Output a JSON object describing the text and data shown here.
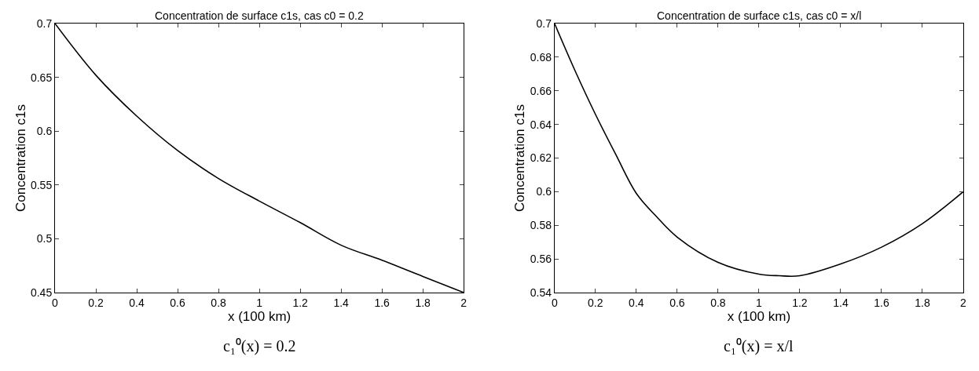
{
  "chart_data": [
    {
      "type": "line",
      "title": "Concentration de surface c1s, cas c0 = 0.2",
      "xlabel": "x (100 km)",
      "ylabel": "Concentration c1s",
      "x": [
        0,
        0.2,
        0.4,
        0.6,
        0.8,
        1.0,
        1.2,
        1.4,
        1.6,
        1.8,
        2.0
      ],
      "series": [
        {
          "color": "#000000",
          "values": [
            0.7,
            0.652,
            0.614,
            0.582,
            0.556,
            0.535,
            0.515,
            0.494,
            0.48,
            0.465,
            0.45
          ]
        }
      ],
      "xlim": [
        0,
        2
      ],
      "ylim": [
        0.45,
        0.7
      ],
      "xticks": [
        0,
        0.2,
        0.4,
        0.6,
        0.8,
        1,
        1.2,
        1.4,
        1.6,
        1.8,
        2
      ],
      "yticks": [
        0.45,
        0.5,
        0.55,
        0.6,
        0.65,
        0.7
      ],
      "annotations": [
        "c₁⁰(x) = 0.2"
      ]
    },
    {
      "type": "line",
      "title": "Concentration de surface c1s, cas c0 = x/l",
      "xlabel": "x (100 km)",
      "ylabel": "Concentration c1s",
      "x": [
        0,
        0.1,
        0.2,
        0.3,
        0.4,
        0.5,
        0.6,
        0.8,
        1.0,
        1.1,
        1.2,
        1.4,
        1.6,
        1.8,
        2.0
      ],
      "series": [
        {
          "color": "#000000",
          "values": [
            0.7,
            0.672,
            0.646,
            0.622,
            0.599,
            0.585,
            0.573,
            0.558,
            0.551,
            0.55,
            0.55,
            0.557,
            0.567,
            0.581,
            0.6
          ]
        }
      ],
      "xlim": [
        0,
        2
      ],
      "ylim": [
        0.54,
        0.7
      ],
      "xticks": [
        0,
        0.2,
        0.4,
        0.6,
        0.8,
        1,
        1.2,
        1.4,
        1.6,
        1.8,
        2
      ],
      "yticks": [
        0.54,
        0.56,
        0.58,
        0.6,
        0.62,
        0.64,
        0.66,
        0.68,
        0.7
      ],
      "annotations": [
        "c₁⁰(x) = x/l"
      ]
    }
  ]
}
